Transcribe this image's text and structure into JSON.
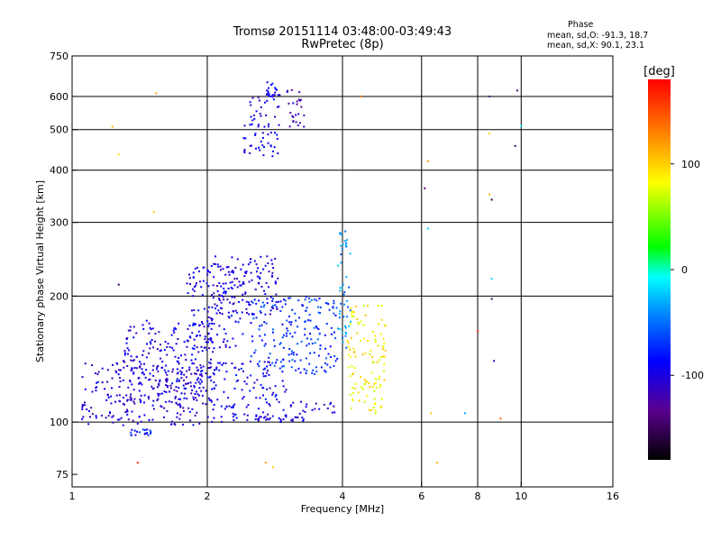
{
  "header": {
    "title": "Tromsø 20151114 03:48:00-03:49:43",
    "subtitle": "RwPretec (8p)",
    "phase_heading": "Phase",
    "stat_o": "mean, sd,O: -91.3, 18.7",
    "stat_x": "mean, sd,X:  90.1, 23.1"
  },
  "colorbar": {
    "unit_label": "[deg]",
    "range": [
      -180,
      180
    ],
    "ticks": [
      {
        "value": 100,
        "label": "100"
      },
      {
        "value": 0,
        "label": "0"
      },
      {
        "value": -100,
        "label": "-100"
      }
    ]
  },
  "chart_data": {
    "type": "scatter",
    "xlabel": "Frequency [MHz]",
    "ylabel": "Stationary phase Virtual Height [km]",
    "x_scale": "log",
    "y_scale": "log",
    "xlim": [
      1,
      16
    ],
    "ylim": [
      70,
      750
    ],
    "x_ticks": [
      {
        "value": 1,
        "label": "1"
      },
      {
        "value": 2,
        "label": "2"
      },
      {
        "value": 4,
        "label": "4"
      },
      {
        "value": 6,
        "label": "6"
      },
      {
        "value": 8,
        "label": "8"
      },
      {
        "value": 10,
        "label": "10"
      },
      {
        "value": 16,
        "label": "16"
      }
    ],
    "y_ticks": [
      {
        "value": 75,
        "label": "75"
      },
      {
        "value": 100,
        "label": "100"
      },
      {
        "value": 200,
        "label": "200"
      },
      {
        "value": 300,
        "label": "300"
      },
      {
        "value": 400,
        "label": "400"
      },
      {
        "value": 500,
        "label": "500"
      },
      {
        "value": 600,
        "label": "600"
      },
      {
        "value": 750,
        "label": "750"
      }
    ],
    "grid_x": [
      2,
      4,
      6,
      8,
      10
    ],
    "grid_y": [
      100,
      200,
      300,
      400,
      500,
      600
    ],
    "clusters": [
      {
        "x": [
          1.05,
          1.95
        ],
        "y": [
          98,
          140
        ],
        "phase": -105
      },
      {
        "x": [
          1.3,
          2.1
        ],
        "y": [
          110,
          175
        ],
        "phase": -100
      },
      {
        "x": [
          1.8,
          2.4
        ],
        "y": [
          150,
          240
        ],
        "phase": -95
      },
      {
        "x": [
          2.05,
          2.9
        ],
        "y": [
          180,
          250
        ],
        "phase": -100
      },
      {
        "x": [
          2.0,
          3.0
        ],
        "y": [
          100,
          140
        ],
        "phase": -95
      },
      {
        "x": [
          2.4,
          3.3
        ],
        "y": [
          100,
          103
        ],
        "phase": -105
      },
      {
        "x": [
          3.0,
          3.9
        ],
        "y": [
          104,
          112
        ],
        "phase": -100
      },
      {
        "x": [
          2.5,
          3.9
        ],
        "y": [
          130,
          200
        ],
        "phase": -70
      },
      {
        "x": [
          3.9,
          4.2
        ],
        "y": [
          150,
          290
        ],
        "phase": -40
      },
      {
        "x": [
          4.1,
          5.0
        ],
        "y": [
          105,
          190
        ],
        "phase": 85
      },
      {
        "x": [
          2.4,
          2.9
        ],
        "y": [
          430,
          600
        ],
        "phase": -100
      },
      {
        "x": [
          3.0,
          3.3
        ],
        "y": [
          490,
          640
        ],
        "phase": -115
      },
      {
        "x": [
          2.7,
          2.9
        ],
        "y": [
          600,
          650
        ],
        "phase": -90
      },
      {
        "x": [
          1.35,
          1.5
        ],
        "y": [
          93,
          96
        ],
        "phase": -80
      }
    ],
    "isolated_points": [
      {
        "x": 1.23,
        "y": 508,
        "phase": 110
      },
      {
        "x": 1.27,
        "y": 436,
        "phase": 95
      },
      {
        "x": 1.27,
        "y": 213,
        "phase": -150
      },
      {
        "x": 1.52,
        "y": 318,
        "phase": 100
      },
      {
        "x": 1.54,
        "y": 611,
        "phase": 120
      },
      {
        "x": 1.4,
        "y": 80,
        "phase": 160
      },
      {
        "x": 2.7,
        "y": 80,
        "phase": 120
      },
      {
        "x": 2.8,
        "y": 78,
        "phase": 100
      },
      {
        "x": 4.4,
        "y": 600,
        "phase": 130
      },
      {
        "x": 6.1,
        "y": 362,
        "phase": -140
      },
      {
        "x": 6.2,
        "y": 420,
        "phase": 120
      },
      {
        "x": 6.2,
        "y": 290,
        "phase": -20
      },
      {
        "x": 6.3,
        "y": 105,
        "phase": 100
      },
      {
        "x": 6.5,
        "y": 80,
        "phase": 110
      },
      {
        "x": 7.5,
        "y": 105,
        "phase": -30
      },
      {
        "x": 8.0,
        "y": 165,
        "phase": 160
      },
      {
        "x": 8.5,
        "y": 600,
        "phase": -140
      },
      {
        "x": 8.6,
        "y": 340,
        "phase": -160
      },
      {
        "x": 8.6,
        "y": 197,
        "phase": -150
      },
      {
        "x": 8.6,
        "y": 220,
        "phase": -20
      },
      {
        "x": 8.7,
        "y": 140,
        "phase": -100
      },
      {
        "x": 8.5,
        "y": 350,
        "phase": 110
      },
      {
        "x": 8.5,
        "y": 490,
        "phase": 100
      },
      {
        "x": 9.7,
        "y": 457,
        "phase": -150
      },
      {
        "x": 9.8,
        "y": 620,
        "phase": -140
      },
      {
        "x": 10.0,
        "y": 510,
        "phase": -10
      },
      {
        "x": 9.0,
        "y": 102,
        "phase": 140
      }
    ]
  }
}
